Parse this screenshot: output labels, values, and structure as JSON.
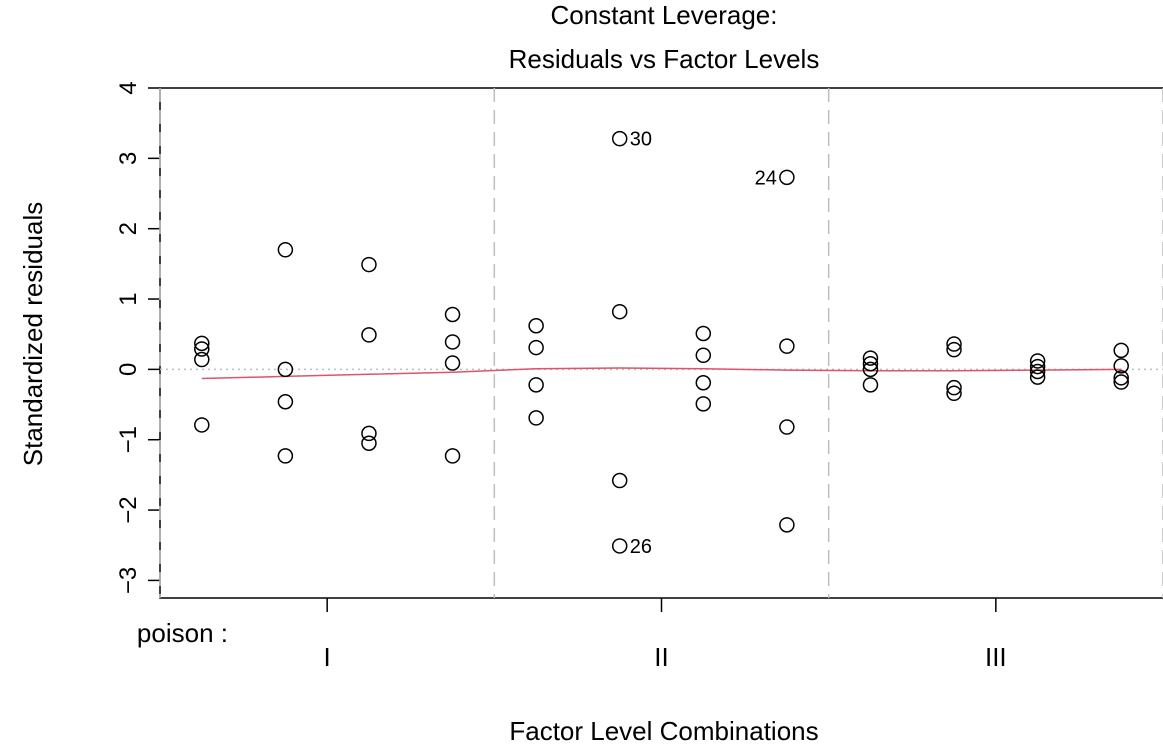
{
  "chart_data": {
    "type": "scatter",
    "title_line1": "Constant Leverage:",
    "title_line2": "Residuals vs Factor Levels",
    "xlabel": "Factor Level Combinations",
    "ylabel": "Standardized residuals",
    "ylim": [
      -3.25,
      4
    ],
    "yticks": [
      -3,
      -2,
      -1,
      0,
      1,
      2,
      3,
      4
    ],
    "ytick_labels": [
      "−3",
      "−2",
      "−1",
      "0",
      "1",
      "2",
      "3",
      "4"
    ],
    "factor_name": "poison :",
    "groups": [
      "I",
      "II",
      "III"
    ],
    "xlim": [
      0.5,
      12.5
    ],
    "group_boundaries": [
      0.5,
      4.5,
      8.5,
      12.5
    ],
    "group_tick_positions": [
      2.5,
      6.5,
      10.5
    ],
    "zero_line": true,
    "points": [
      {
        "x": 1,
        "y": 0.37
      },
      {
        "x": 1,
        "y": 0.29
      },
      {
        "x": 1,
        "y": 0.14
      },
      {
        "x": 1,
        "y": -0.79
      },
      {
        "x": 2,
        "y": 1.7
      },
      {
        "x": 2,
        "y": 0.0
      },
      {
        "x": 2,
        "y": -0.46
      },
      {
        "x": 2,
        "y": -1.23
      },
      {
        "x": 3,
        "y": 1.49
      },
      {
        "x": 3,
        "y": 0.49
      },
      {
        "x": 3,
        "y": -0.91
      },
      {
        "x": 3,
        "y": -1.05
      },
      {
        "x": 4,
        "y": 0.78
      },
      {
        "x": 4,
        "y": 0.39
      },
      {
        "x": 4,
        "y": 0.09
      },
      {
        "x": 4,
        "y": -1.23
      },
      {
        "x": 5,
        "y": 0.62
      },
      {
        "x": 5,
        "y": 0.31
      },
      {
        "x": 5,
        "y": -0.22
      },
      {
        "x": 5,
        "y": -0.69
      },
      {
        "x": 6,
        "y": 3.28,
        "label": "30",
        "label_side": "right"
      },
      {
        "x": 6,
        "y": 0.82
      },
      {
        "x": 6,
        "y": -1.58
      },
      {
        "x": 6,
        "y": -2.51,
        "label": "26",
        "label_side": "right"
      },
      {
        "x": 7,
        "y": 0.51
      },
      {
        "x": 7,
        "y": 0.2
      },
      {
        "x": 7,
        "y": -0.19
      },
      {
        "x": 7,
        "y": -0.49
      },
      {
        "x": 8,
        "y": 2.73,
        "label": "24",
        "label_side": "left"
      },
      {
        "x": 8,
        "y": 0.33
      },
      {
        "x": 8,
        "y": -0.82
      },
      {
        "x": 8,
        "y": -2.21
      },
      {
        "x": 9,
        "y": 0.16
      },
      {
        "x": 9,
        "y": 0.08
      },
      {
        "x": 9,
        "y": 0.0
      },
      {
        "x": 9,
        "y": -0.22
      },
      {
        "x": 10,
        "y": 0.36
      },
      {
        "x": 10,
        "y": 0.28
      },
      {
        "x": 10,
        "y": -0.26
      },
      {
        "x": 10,
        "y": -0.34
      },
      {
        "x": 11,
        "y": 0.12
      },
      {
        "x": 11,
        "y": 0.04
      },
      {
        "x": 11,
        "y": -0.03
      },
      {
        "x": 11,
        "y": -0.11
      },
      {
        "x": 12,
        "y": 0.27
      },
      {
        "x": 12,
        "y": 0.05
      },
      {
        "x": 12,
        "y": -0.12
      },
      {
        "x": 12,
        "y": -0.18
      }
    ],
    "smooth_line": {
      "color": "#DF536B",
      "x": [
        1,
        2,
        3,
        4,
        5,
        6,
        7,
        8,
        9,
        10,
        11,
        12
      ],
      "y": [
        -0.13,
        -0.1,
        -0.07,
        -0.04,
        0.01,
        0.02,
        0.01,
        -0.01,
        -0.02,
        -0.02,
        -0.01,
        0.0
      ]
    },
    "colors": {
      "points": "#000000",
      "axes": "#000000",
      "group_dividers": "#BEBEBE",
      "zero_line": "#BEBEBE"
    }
  }
}
